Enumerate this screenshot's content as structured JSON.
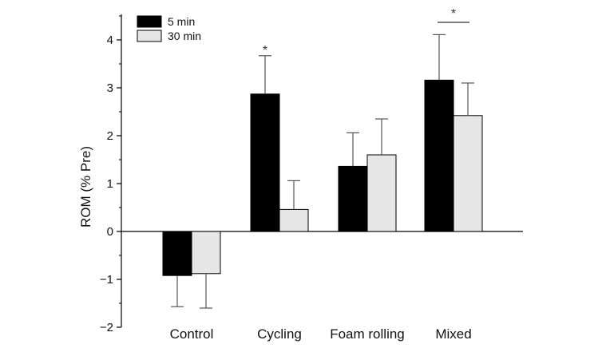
{
  "chart_data": {
    "type": "bar",
    "categories": [
      "Control",
      "Cycling",
      "Foam rolling",
      "Mixed"
    ],
    "series": [
      {
        "name": "5 min",
        "color": "#000000",
        "values": [
          -0.92,
          2.87,
          1.36,
          3.16
        ],
        "errors": [
          0.65,
          0.8,
          0.7,
          0.95
        ]
      },
      {
        "name": "30 min",
        "color": "#e6e6e6",
        "values": [
          -0.88,
          0.46,
          1.6,
          2.42
        ],
        "errors": [
          0.72,
          0.6,
          0.75,
          0.68
        ]
      }
    ],
    "ylabel": "ROM (% Pre)",
    "ylim": [
      -2,
      4.5
    ],
    "yticks": [
      -2,
      -1,
      0,
      1,
      2,
      3,
      4
    ],
    "ytick_labels": [
      "−2",
      "−1",
      "0",
      "1",
      "2",
      "3",
      "4"
    ],
    "legend_position": "top-left",
    "annotations": {
      "cycling_star": "*",
      "mixed_star": "*"
    }
  }
}
